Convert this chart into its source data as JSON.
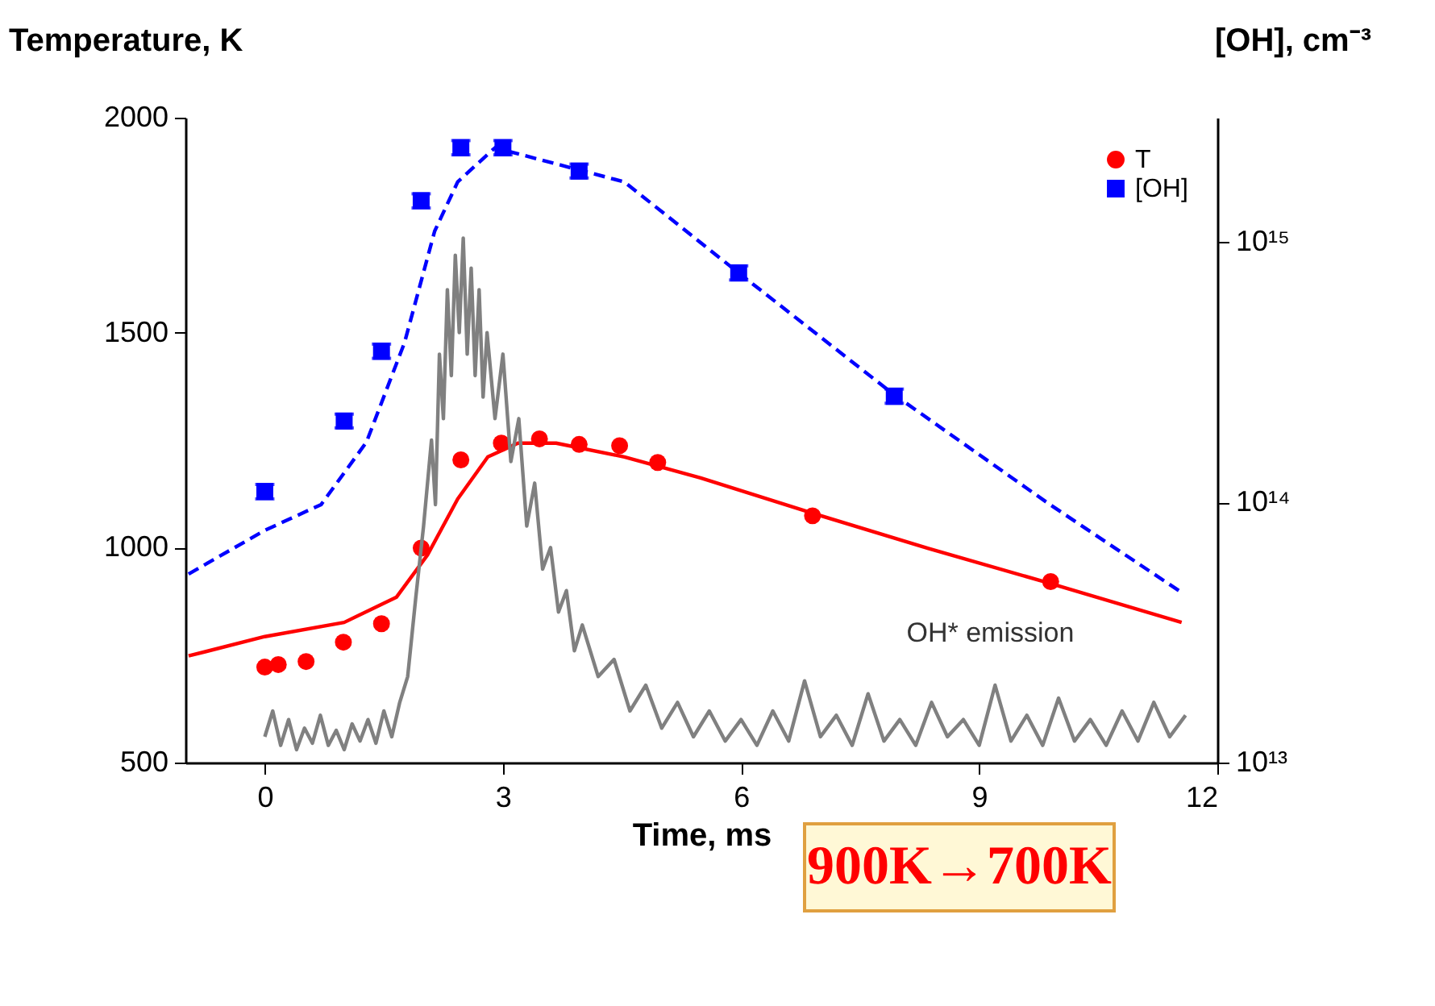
{
  "chart_data": {
    "type": "line",
    "xlabel": "Time, ms",
    "ylabel": "Temperature, K",
    "y2label": "[OH], cm⁻³",
    "xlim": [
      -1,
      12
    ],
    "xticks": [
      0,
      3,
      6,
      9,
      12
    ],
    "ylim": [
      500,
      2000
    ],
    "yticks": [
      500,
      1000,
      1500,
      2000
    ],
    "y2lim": [
      10000000000000.0,
      3000000000000000.0
    ],
    "y2ticks": [
      {
        "value": 10000000000000.0,
        "label": "10¹³"
      },
      {
        "value": 100000000000000.0,
        "label": "10¹⁴"
      },
      {
        "value": 1000000000000000.0,
        "label": "10¹⁵"
      }
    ],
    "log": "y2",
    "grid": false,
    "legend": "top right",
    "series": [
      {
        "type": "scatter",
        "name": "T",
        "color": "#ff0000",
        "marker": "circle",
        "x": [
          0,
          0.17,
          0.52,
          0.99,
          1.47,
          1.97,
          2.47,
          2.98,
          3.46,
          3.96,
          4.47,
          4.95,
          6.9,
          9.9
        ],
        "values": [
          722,
          728,
          735,
          780,
          823,
          999,
          1204,
          1243,
          1253,
          1240,
          1237,
          1198,
          1074,
          921
        ]
      },
      {
        "color": "#ff0000",
        "line_style": "solid",
        "x": [
          -0.96,
          0,
          1,
          1.66,
          2.05,
          2.43,
          2.81,
          3.19,
          3.67,
          4.53,
          5.49,
          6.9,
          8.36,
          9.89,
          11.55
        ],
        "values": [
          748,
          793,
          826,
          885,
          983,
          1113,
          1211,
          1243,
          1243,
          1211,
          1162,
          1080,
          998,
          917,
          826
        ]
      },
      {
        "type": "scatter",
        "name": "[OH]",
        "color": "#0000ff",
        "marker": "square",
        "axis": "y2",
        "x": [
          0,
          1,
          1.47,
          1.97,
          2.47,
          3.0,
          3.96,
          5.97,
          7.93
        ],
        "values": [
          110000000000000.0,
          205000000000000.0,
          380000000000000.0,
          1440000000000000.0,
          2300000000000000.0,
          2300000000000000.0,
          1870000000000000.0,
          760000000000000.0,
          255000000000000.0
        ],
        "errors": [
          [
            103000000000000.0,
            117000000000000.0
          ],
          [
            193000000000000.0,
            218000000000000.0
          ],
          [
            357000000000000.0,
            405000000000000.0
          ],
          [
            1350000000000000.0,
            1530000000000000.0
          ],
          [
            2160000000000000.0,
            2450000000000000.0
          ],
          [
            2160000000000000.0,
            2450000000000000.0
          ],
          [
            1760000000000000.0,
            1990000000000000.0
          ],
          [
            714000000000000.0,
            809000000000000.0
          ],
          [
            240000000000000.0,
            272000000000000.0
          ]
        ]
      },
      {
        "color": "#0000ff",
        "line_style": "dashed",
        "axis": "y2",
        "x": [
          -0.96,
          0,
          0.71,
          1.28,
          1.76,
          2.14,
          2.43,
          2.9,
          4.53,
          5.97,
          7.92,
          9.89,
          11.55
        ],
        "values": [
          53000000000000.0,
          78000000000000.0,
          98000000000000.0,
          170000000000000.0,
          410000000000000.0,
          1100000000000000.0,
          1700000000000000.0,
          2300000000000000.0,
          1700000000000000.0,
          760000000000000.0,
          260000000000000.0,
          98000000000000.0,
          45000000000000.0
        ]
      },
      {
        "color": "#808080",
        "line_style": "solid",
        "x": [
          0,
          0.1,
          0.2,
          0.3,
          0.4,
          0.5,
          0.6,
          0.7,
          0.8,
          0.9,
          1.0,
          1.1,
          1.2,
          1.3,
          1.4,
          1.5,
          1.6,
          1.7,
          1.8,
          1.9,
          2.0,
          2.1,
          2.15,
          2.2,
          2.25,
          2.3,
          2.35,
          2.4,
          2.45,
          2.5,
          2.55,
          2.6,
          2.65,
          2.7,
          2.75,
          2.8,
          2.9,
          3.0,
          3.1,
          3.2,
          3.3,
          3.4,
          3.5,
          3.6,
          3.7,
          3.8,
          3.9,
          4.0,
          4.2,
          4.4,
          4.6,
          4.8,
          5.0,
          5.2,
          5.4,
          5.6,
          5.8,
          6.0,
          6.2,
          6.4,
          6.6,
          6.8,
          7.0,
          7.2,
          7.4,
          7.6,
          7.8,
          8.0,
          8.2,
          8.4,
          8.6,
          8.8,
          9.0,
          9.2,
          9.4,
          9.6,
          9.8,
          10.0,
          10.2,
          10.4,
          10.6,
          10.8,
          11.0,
          11.2,
          11.4,
          11.6
        ],
        "values": [
          560,
          620,
          540,
          600,
          530,
          580,
          545,
          610,
          540,
          575,
          530,
          590,
          550,
          600,
          545,
          620,
          560,
          640,
          700,
          880,
          1050,
          1250,
          1100,
          1450,
          1300,
          1600,
          1400,
          1680,
          1500,
          1720,
          1450,
          1650,
          1400,
          1600,
          1350,
          1500,
          1300,
          1450,
          1200,
          1300,
          1050,
          1150,
          950,
          1000,
          850,
          900,
          760,
          820,
          700,
          740,
          620,
          680,
          580,
          640,
          560,
          620,
          550,
          600,
          540,
          620,
          550,
          690,
          560,
          610,
          540,
          660,
          550,
          600,
          540,
          640,
          560,
          600,
          540,
          680,
          550,
          610,
          540,
          650,
          550,
          600,
          540,
          620,
          550,
          640,
          560,
          610
        ]
      }
    ],
    "annotations": [
      "OH* emission",
      "900K→700K"
    ]
  }
}
